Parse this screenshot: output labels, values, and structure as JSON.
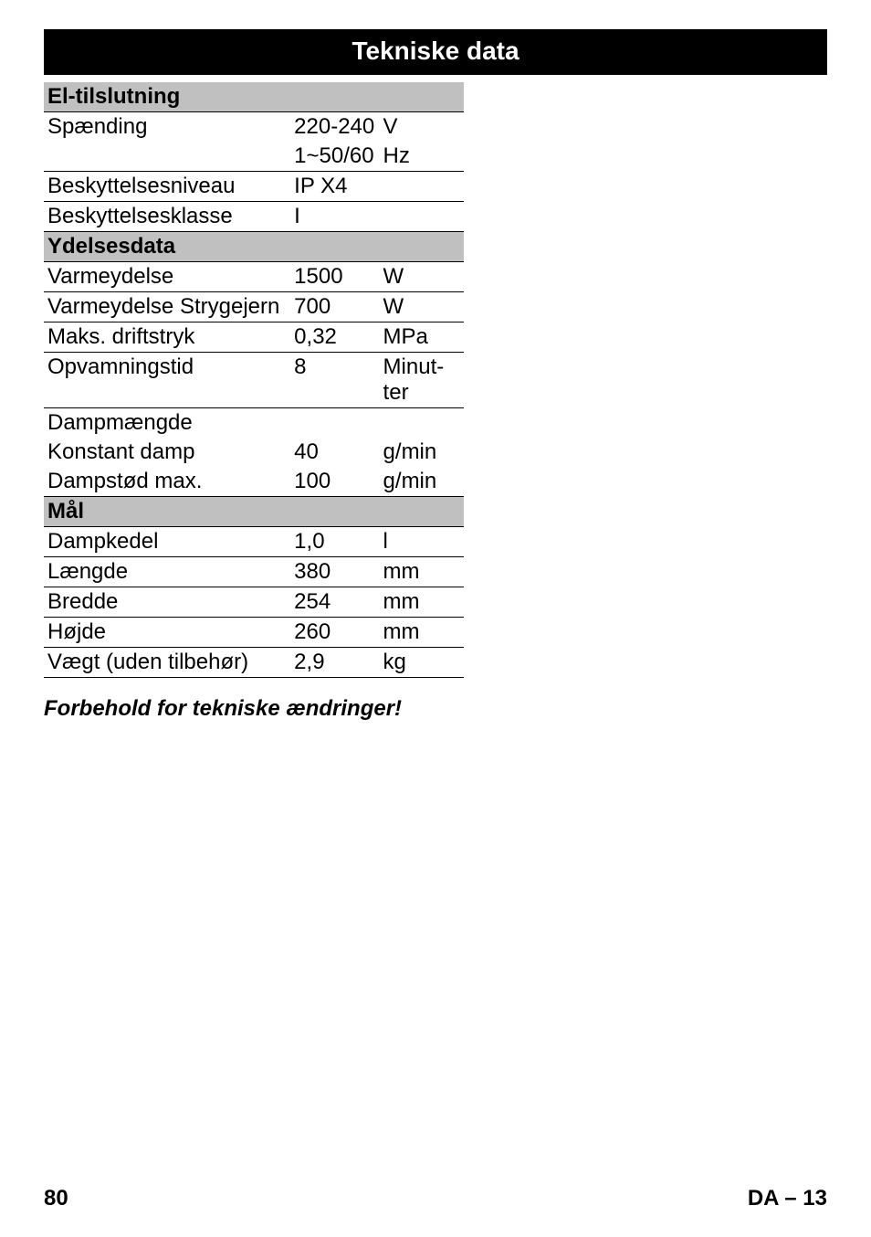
{
  "title": "Tekniske data",
  "sections": {
    "elTilslutning": {
      "header": "El-tilslutning",
      "rows": [
        {
          "label": "Spænding",
          "value": "220-240",
          "unit": "V",
          "underlined": false
        },
        {
          "label": "",
          "value": "1~50/60",
          "unit": "Hz",
          "underlined": true
        },
        {
          "label": "Beskyttelsesniveau",
          "value": "IP X4",
          "unit": "",
          "underlined": true
        },
        {
          "label": "Beskyttelsesklasse",
          "value": "I",
          "unit": "",
          "underlined": true
        }
      ]
    },
    "ydelsesdata": {
      "header": "Ydelsesdata",
      "rows": [
        {
          "label": "Varmeydelse",
          "value": "1500",
          "unit": "W",
          "underlined": true
        },
        {
          "label": "Varmeydelse Strygejern",
          "value": "700",
          "unit": "W",
          "underlined": true
        },
        {
          "label": "Maks. driftstryk",
          "value": "0,32",
          "unit": "MPa",
          "underlined": true
        },
        {
          "label": "Opvamningstid",
          "value": "8",
          "unit": "Minut-ter",
          "underlined": true
        },
        {
          "label": "Dampmængde",
          "value": "",
          "unit": "",
          "underlined": false
        },
        {
          "label": "Konstant damp",
          "value": "40",
          "unit": "g/min",
          "underlined": false
        },
        {
          "label": "Dampstød max.",
          "value": "100",
          "unit": "g/min",
          "underlined": true
        }
      ]
    },
    "maal": {
      "header": "Mål",
      "rows": [
        {
          "label": "Dampkedel",
          "value": "1,0",
          "unit": "l",
          "underlined": true
        },
        {
          "label": "Længde",
          "value": "380",
          "unit": "mm",
          "underlined": true
        },
        {
          "label": "Bredde",
          "value": "254",
          "unit": "mm",
          "underlined": true
        },
        {
          "label": "Højde",
          "value": "260",
          "unit": "mm",
          "underlined": true
        },
        {
          "label": "Vægt (uden tilbehør)",
          "value": "2,9",
          "unit": "kg",
          "underlined": true
        }
      ]
    }
  },
  "note": "Forbehold for tekniske ændringer!",
  "footer": {
    "pageNumber": "80",
    "langPage": "DA – 13"
  }
}
